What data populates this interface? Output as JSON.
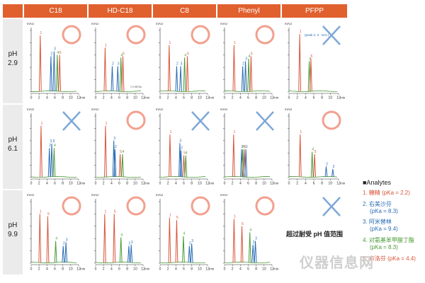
{
  "columns": [
    "C18",
    "HD-C18",
    "C8",
    "Phenyl",
    "PFPP"
  ],
  "rows": [
    {
      "label_ph": "pH",
      "label_val": "2.9"
    },
    {
      "label_ph": "pH",
      "label_val": "6.1"
    },
    {
      "label_ph": "pH",
      "label_val": "9.9"
    }
  ],
  "axis": {
    "y_unit": "mAU",
    "x_unit": "min",
    "ticks": [
      "0",
      "2",
      "4",
      "6",
      "8",
      "10",
      "12"
    ]
  },
  "colors": {
    "header": "#e0602e",
    "c1": "#d9553a",
    "c2": "#2a6db5",
    "c3": "#2a6db5",
    "c4": "#4a9a36",
    "c5": "#d9553a",
    "ok": "#f2a08f",
    "ng": "#7ea8d8",
    "baseline": "#4a9a36"
  },
  "not_applicable_text": "超过耐受 pH 值范围",
  "legend": {
    "title": "■Analytes",
    "items": [
      {
        "line1": "1. 糖精 (pKa = 2.2)",
        "line2": "",
        "color": "#d9553a"
      },
      {
        "line1": "2. 右美沙芬",
        "line2": "(pKa = 8.3)",
        "color": "#2a6db5"
      },
      {
        "line1": "3. 阿米替林",
        "line2": "(pKa = 9.4)",
        "color": "#2a6db5"
      },
      {
        "line1": "4. 对氨基苯甲酸丁酯",
        "line2": "(pKa = 8.3)",
        "color": "#4a9a36"
      },
      {
        "line1": "5. 布洛芬 (pKa = 4.4)",
        "line2": "",
        "color": "#d9553a"
      }
    ]
  },
  "watermark": "仪器信息网",
  "chart_data": [
    {
      "type": "line",
      "column": "C18",
      "ph": "2.9",
      "verdict": "circle",
      "x_unit": "min",
      "peaks": [
        {
          "id": "1",
          "x": 2.3,
          "h": 0.92
        },
        {
          "id": "2",
          "x": 5.0,
          "h": 0.58
        },
        {
          "id": "3",
          "x": 5.8,
          "h": 0.66
        },
        {
          "id": "4",
          "x": 6.6,
          "h": 0.6
        },
        {
          "id": "5",
          "x": 7.2,
          "h": 0.6
        }
      ]
    },
    {
      "type": "line",
      "column": "HD-C18",
      "ph": "2.9",
      "verdict": "circle",
      "annotation": "IT-HSR3A",
      "peaks": [
        {
          "id": "1",
          "x": 2.4,
          "h": 0.72
        },
        {
          "id": "2",
          "x": 4.2,
          "h": 0.42
        },
        {
          "id": "3",
          "x": 5.6,
          "h": 0.42
        },
        {
          "id": "4",
          "x": 6.4,
          "h": 0.56
        },
        {
          "id": "5",
          "x": 6.9,
          "h": 0.58
        }
      ]
    },
    {
      "type": "line",
      "column": "C8",
      "ph": "2.9",
      "verdict": "circle",
      "peaks": [
        {
          "id": "1",
          "x": 2.3,
          "h": 0.76
        },
        {
          "id": "2",
          "x": 4.2,
          "h": 0.42
        },
        {
          "id": "3",
          "x": 5.2,
          "h": 0.42
        },
        {
          "id": "4",
          "x": 6.2,
          "h": 0.56
        },
        {
          "id": "5",
          "x": 6.9,
          "h": 0.58
        }
      ]
    },
    {
      "type": "line",
      "column": "Phenyl",
      "ph": "2.9",
      "verdict": "circle",
      "peaks": [
        {
          "id": "1",
          "x": 2.4,
          "h": 0.76
        },
        {
          "id": "2",
          "x": 4.6,
          "h": 0.42
        },
        {
          "id": "3",
          "x": 5.3,
          "h": 0.5
        },
        {
          "id": "4",
          "x": 6.1,
          "h": 0.54
        },
        {
          "id": "5",
          "x": 6.7,
          "h": 0.58
        }
      ]
    },
    {
      "type": "line",
      "column": "PFPP",
      "ph": "2.9",
      "verdict": "cross",
      "annotation": "(peak 2, 3 : N.D.)",
      "peaks": [
        {
          "id": "1",
          "x": 2.6,
          "h": 0.94
        },
        {
          "id": "4",
          "x": 4.9,
          "h": 0.5
        },
        {
          "id": "5",
          "x": 5.3,
          "h": 0.54
        }
      ]
    },
    {
      "type": "line",
      "column": "C18",
      "ph": "6.1",
      "verdict": "cross",
      "peaks": [
        {
          "id": "1",
          "x": 2.5,
          "h": 0.84
        },
        {
          "id": "2",
          "x": 4.6,
          "h": 0.48
        },
        {
          "id": "3,5",
          "x": 5.2,
          "h": 0.55
        },
        {
          "id": "4",
          "x": 5.8,
          "h": 0.48
        }
      ]
    },
    {
      "type": "line",
      "column": "HD-C18",
      "ph": "6.1",
      "verdict": "circle",
      "peaks": [
        {
          "id": "1",
          "x": 2.5,
          "h": 0.84
        },
        {
          "id": "3",
          "x": 4.6,
          "h": 0.6
        },
        {
          "id": "2",
          "x": 4.9,
          "h": 0.46
        },
        {
          "id": "5",
          "x": 6.2,
          "h": 0.38
        },
        {
          "id": "4",
          "x": 6.8,
          "h": 0.38
        }
      ]
    },
    {
      "type": "line",
      "column": "C8",
      "ph": "6.1",
      "verdict": "cross",
      "peaks": [
        {
          "id": "1",
          "x": 2.5,
          "h": 0.7
        },
        {
          "id": "3",
          "x": 5.0,
          "h": 0.56
        },
        {
          "id": "2",
          "x": 5.3,
          "h": 0.44
        },
        {
          "id": "5",
          "x": 6.0,
          "h": 0.36
        },
        {
          "id": "4",
          "x": 6.5,
          "h": 0.36
        }
      ]
    },
    {
      "type": "line",
      "column": "Phenyl",
      "ph": "6.1",
      "verdict": "cross",
      "peaks": [
        {
          "id": "1",
          "x": 2.3,
          "h": 0.7
        },
        {
          "id": "2",
          "x": 4.3,
          "h": 0.46
        },
        {
          "id": "4",
          "x": 4.6,
          "h": 0.46
        },
        {
          "id": "5",
          "x": 5.0,
          "h": 0.46
        },
        {
          "id": "3",
          "x": 5.4,
          "h": 0.46
        }
      ]
    },
    {
      "type": "line",
      "column": "PFPP",
      "ph": "6.1",
      "verdict": "circle",
      "peaks": [
        {
          "id": "1",
          "x": 2.7,
          "h": 0.7
        },
        {
          "id": "4",
          "x": 5.6,
          "h": 0.42
        },
        {
          "id": "5",
          "x": 6.2,
          "h": 0.38
        },
        {
          "id": "2",
          "x": 9.0,
          "h": 0.18
        },
        {
          "id": "3",
          "x": 10.6,
          "h": 0.14
        }
      ]
    },
    {
      "type": "line",
      "column": "C18",
      "ph": "9.9",
      "verdict": "circle",
      "peaks": [
        {
          "id": "1",
          "x": 2.2,
          "h": 0.8
        },
        {
          "id": "5",
          "x": 4.2,
          "h": 0.76
        },
        {
          "id": "4",
          "x": 6.2,
          "h": 0.36
        },
        {
          "id": "2",
          "x": 8.1,
          "h": 0.28
        },
        {
          "id": "3",
          "x": 8.8,
          "h": 0.34
        }
      ]
    },
    {
      "type": "line",
      "column": "HD-C18",
      "ph": "9.9",
      "verdict": "circle",
      "peaks": [
        {
          "id": "1",
          "x": 2.3,
          "h": 0.8
        },
        {
          "id": "5",
          "x": 4.7,
          "h": 0.8
        },
        {
          "id": "4",
          "x": 6.4,
          "h": 0.42
        },
        {
          "id": "2",
          "x": 8.4,
          "h": 0.28
        },
        {
          "id": "3",
          "x": 9.0,
          "h": 0.3
        }
      ]
    },
    {
      "type": "line",
      "column": "C8",
      "ph": "9.9",
      "verdict": "circle",
      "peaks": [
        {
          "id": "1",
          "x": 2.4,
          "h": 0.74
        },
        {
          "id": "5",
          "x": 4.2,
          "h": 0.7
        },
        {
          "id": "4",
          "x": 5.9,
          "h": 0.44
        },
        {
          "id": "2",
          "x": 7.4,
          "h": 0.28
        },
        {
          "id": "3",
          "x": 8.0,
          "h": 0.32
        }
      ]
    },
    {
      "type": "line",
      "column": "Phenyl",
      "ph": "9.9",
      "verdict": "circle",
      "peaks": [
        {
          "id": "1",
          "x": 2.4,
          "h": 0.72
        },
        {
          "id": "5",
          "x": 4.4,
          "h": 0.6
        },
        {
          "id": "4",
          "x": 6.4,
          "h": 0.5
        },
        {
          "id": "2",
          "x": 7.2,
          "h": 0.3
        },
        {
          "id": "3",
          "x": 7.8,
          "h": 0.36
        }
      ]
    }
  ]
}
